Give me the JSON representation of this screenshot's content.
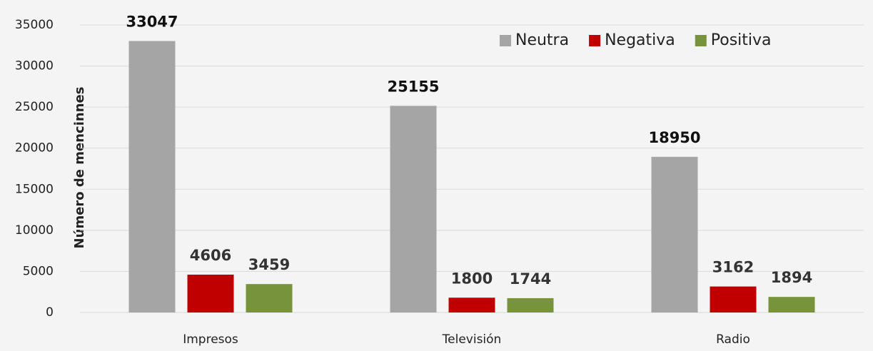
{
  "chart_data": {
    "type": "bar",
    "y_label": "Número de mencinnes",
    "categories": [
      "Impresos",
      "Televisión",
      "Radio"
    ],
    "series": [
      {
        "name": "Neutra",
        "color": "#a5a5a5",
        "values": [
          33047,
          25155,
          18950
        ]
      },
      {
        "name": "Negativa",
        "color": "#c00000",
        "values": [
          4606,
          1800,
          3162
        ]
      },
      {
        "name": "Positiva",
        "color": "#77933c",
        "values": [
          3459,
          1744,
          1894
        ]
      }
    ],
    "ylim": [
      0,
      35000
    ],
    "yticks": [
      0,
      5000,
      10000,
      15000,
      20000,
      25000,
      30000,
      35000
    ],
    "grid": true,
    "legend": "top-right"
  }
}
